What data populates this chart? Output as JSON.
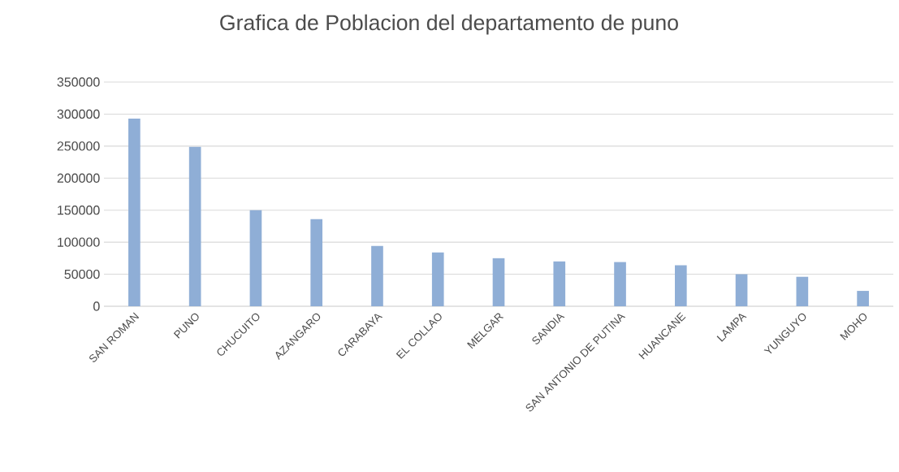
{
  "chart_data": {
    "type": "bar",
    "title": "Grafica de Poblacion del departamento de puno",
    "categories": [
      "SAN ROMAN",
      "PUNO",
      "CHUCUITO",
      "AZANGARO",
      "CARABAYA",
      "EL COLLAO",
      "MELGAR",
      "SANDIA",
      "SAN ANTONIO DE PUTINA",
      "HUANCANE",
      "LAMPA",
      "YUNGUYO",
      "MOHO"
    ],
    "values": [
      293000,
      249000,
      150000,
      136000,
      94000,
      84000,
      75000,
      70000,
      69000,
      64000,
      50000,
      46000,
      24000
    ],
    "color": "#8faed6",
    "ylim": [
      0,
      350000
    ],
    "yticks": [
      0,
      50000,
      100000,
      150000,
      200000,
      250000,
      300000,
      350000
    ],
    "grid": "y"
  }
}
